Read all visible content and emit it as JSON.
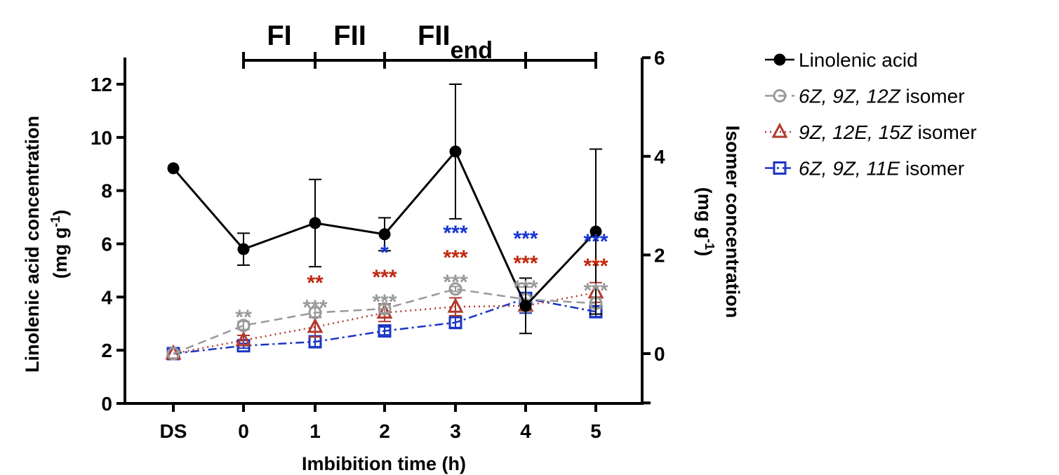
{
  "chart_data": {
    "type": "line",
    "xlabel": "Imbibition time (h)",
    "categories": [
      "DS",
      "0",
      "1",
      "2",
      "3",
      "4",
      "5"
    ],
    "y_left": {
      "label_line1": "Linolenic acid concentration",
      "label_line2": "(mg g",
      "label_sup": "-1",
      "label_end": ")",
      "range": [
        0,
        12
      ],
      "ticks": [
        0,
        2,
        4,
        6,
        8,
        10,
        12
      ]
    },
    "y_right": {
      "label_line1": "Isomer concentration",
      "label_line2": "(mg g",
      "label_sup": "-1",
      "label_end": ")",
      "range": [
        -1,
        6
      ],
      "ticks": [
        0,
        2,
        4,
        6
      ]
    },
    "phases": [
      {
        "label": "FI",
        "sub": "",
        "from": "0",
        "to": "1"
      },
      {
        "label": "FII",
        "sub": "",
        "from": "1",
        "to": "2"
      },
      {
        "label": "FII",
        "sub": "end",
        "from": "2",
        "to": "4"
      }
    ],
    "phase_bracket_ticks": [
      "0",
      "1",
      "2",
      "4",
      "5"
    ],
    "series": [
      {
        "name": "Linolenic acid",
        "name_italic": "",
        "name_plain": "Linolenic acid",
        "axis": "left",
        "color": "#000000",
        "marker": "filled-circle",
        "line": "solid",
        "values": [
          8.84,
          5.8,
          6.78,
          6.36,
          9.47,
          3.67,
          6.46
        ],
        "errors": [
          0,
          0.6,
          1.64,
          0.62,
          2.53,
          1.04,
          3.1
        ]
      },
      {
        "name": "6Z, 9Z, 12Z isomer",
        "name_italic": "6Z, 9Z, 12Z",
        "name_plain": " isomer",
        "axis": "right",
        "color": "#999999",
        "marker": "open-circle",
        "line": "dashed",
        "values": [
          0,
          0.57,
          0.83,
          0.91,
          1.31,
          1.1,
          1.02
        ],
        "errors": [
          0,
          0.08,
          0.1,
          0.08,
          0.05,
          0.25,
          0.1
        ]
      },
      {
        "name": "9Z, 12E, 15Z isomer",
        "name_italic": "9Z, 12E, 15Z",
        "name_plain": " isomer",
        "axis": "right",
        "color": "#b03a2e",
        "marker": "open-triangle",
        "line": "dotted",
        "values": [
          0,
          0.27,
          0.54,
          0.83,
          0.95,
          0.97,
          1.24
        ],
        "errors": [
          0,
          0.1,
          0.2,
          0.18,
          0.18,
          0.1,
          0.2
        ]
      },
      {
        "name": "6Z, 9Z, 11E isomer",
        "name_italic": "6Z, 9Z, 11E",
        "name_plain": " isomer",
        "axis": "right",
        "color": "#1a35c4",
        "marker": "open-square",
        "line": "dash-dot",
        "values": [
          0,
          0.16,
          0.24,
          0.46,
          0.63,
          1.12,
          0.85
        ],
        "errors": [
          0,
          0.05,
          0.1,
          0.08,
          0.1,
          0.3,
          0.1
        ]
      }
    ],
    "significance": [
      {
        "x": "0",
        "gray": "**",
        "red": "",
        "blue": ""
      },
      {
        "x": "1",
        "gray": "***",
        "red": "**",
        "blue": ""
      },
      {
        "x": "2",
        "gray": "***",
        "red": "***",
        "blue": "*"
      },
      {
        "x": "3",
        "gray": "***",
        "red": "***",
        "blue": "***"
      },
      {
        "x": "4",
        "gray": "***",
        "red": "***",
        "blue": "***"
      },
      {
        "x": "5",
        "gray": "***",
        "red": "***",
        "blue": "***"
      }
    ],
    "star_colors": {
      "gray": "#999999",
      "red": "#c0270f",
      "blue": "#1535d0"
    },
    "grid": false,
    "legend": "right"
  }
}
